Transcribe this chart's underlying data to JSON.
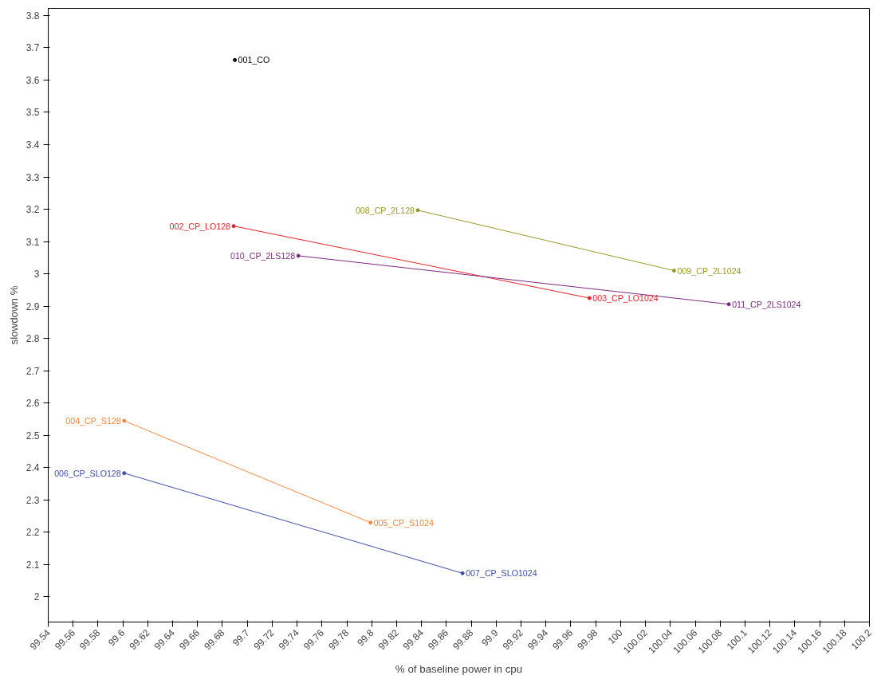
{
  "chart_data": {
    "type": "line",
    "xlabel": "% of baseline power in cpu",
    "ylabel": "slowdown %",
    "xlim": [
      99.54,
      100.2
    ],
    "ylim": [
      1.922,
      3.822
    ],
    "xticks": [
      99.54,
      99.56,
      99.58,
      99.6,
      99.62,
      99.64,
      99.66,
      99.68,
      99.7,
      99.72,
      99.74,
      99.76,
      99.78,
      99.8,
      99.82,
      99.84,
      99.86,
      99.88,
      99.9,
      99.92,
      99.94,
      99.96,
      99.98,
      100,
      100.02,
      100.04,
      100.06,
      100.08,
      100.1,
      100.12,
      100.14,
      100.16,
      100.18,
      100.2
    ],
    "yticks": [
      2,
      2.1,
      2.2,
      2.3,
      2.4,
      2.5,
      2.6,
      2.7,
      2.8,
      2.9,
      3,
      3.1,
      3.2,
      3.3,
      3.4,
      3.5,
      3.6,
      3.7,
      3.8
    ],
    "marker": "circle",
    "line_style": "solid",
    "series": [
      {
        "type": "scatter",
        "color": "#000000",
        "x": [
          99.69
        ],
        "values": [
          3.662
        ]
      },
      {
        "color": "#e8202a",
        "x": [
          99.689,
          99.975
        ],
        "values": [
          3.148,
          2.925
        ]
      },
      {
        "color": "#f5883c",
        "x": [
          99.601,
          99.799
        ],
        "values": [
          2.545,
          2.23
        ]
      },
      {
        "color": "#3f4fa8",
        "x": [
          99.601,
          99.873
        ],
        "values": [
          2.383,
          2.073
        ]
      },
      {
        "color": "#9a9a2a",
        "x": [
          99.837,
          100.043
        ],
        "values": [
          3.197,
          3.01
        ]
      },
      {
        "color": "#7b2a7f",
        "x": [
          99.741,
          100.087
        ],
        "values": [
          3.056,
          2.906
        ]
      }
    ],
    "annotations": [
      {
        "text": "001_CO",
        "x": 99.69,
        "y": 3.662
      },
      {
        "text": "002_CP_LO128",
        "x": 99.689,
        "y": 3.148
      },
      {
        "text": "003_CP_LO1024",
        "x": 99.975,
        "y": 2.925
      },
      {
        "text": "004_CP_S128",
        "x": 99.601,
        "y": 2.545
      },
      {
        "text": "005_CP_S1024",
        "x": 99.799,
        "y": 2.23
      },
      {
        "text": "006_CP_SLO128",
        "x": 99.601,
        "y": 2.383
      },
      {
        "text": "007_CP_SLO1024",
        "x": 99.873,
        "y": 2.073
      },
      {
        "text": "008_CP_2L128",
        "x": 99.837,
        "y": 3.197
      },
      {
        "text": "009_CP_2L1024",
        "x": 100.043,
        "y": 3.01
      },
      {
        "text": "010_CP_2LS128",
        "x": 99.741,
        "y": 3.056
      },
      {
        "text": "011_CP_2LS1024",
        "x": 100.087,
        "y": 2.906
      }
    ]
  }
}
